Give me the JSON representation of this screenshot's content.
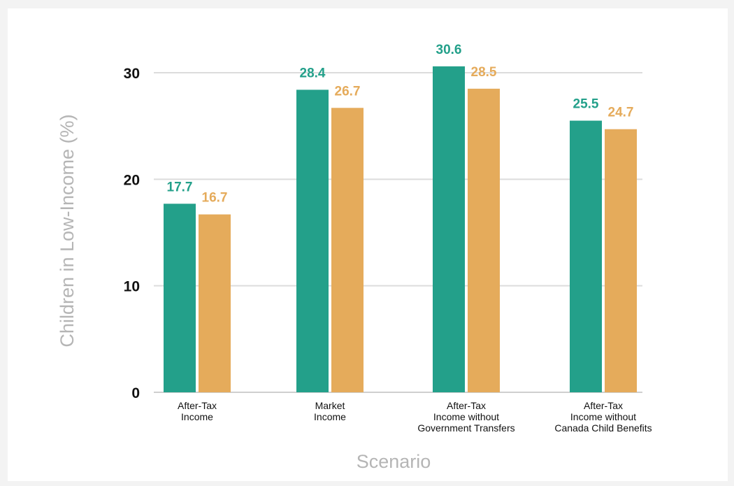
{
  "chart_data": {
    "type": "bar",
    "title": "",
    "xlabel": "Scenario",
    "ylabel": "Children in Low-Income (%)",
    "ylim": [
      0,
      30
    ],
    "yticks": [
      0,
      10,
      20,
      30
    ],
    "grid": true,
    "categories": [
      [
        "After-Tax",
        "Income"
      ],
      [
        "Market",
        "Income"
      ],
      [
        "After-Tax",
        "Income without",
        "Government Transfers"
      ],
      [
        "After-Tax",
        "Income without",
        "Canada Child Benefits"
      ]
    ],
    "series": [
      {
        "color": "#23a08a",
        "values": [
          17.7,
          28.4,
          30.6,
          25.5
        ],
        "labels": [
          "17.7",
          "28.4",
          "30.6",
          "25.5"
        ]
      },
      {
        "color": "#e5ab5b",
        "values": [
          16.7,
          26.7,
          28.5,
          24.7
        ],
        "labels": [
          "16.7",
          "26.7",
          "28.5",
          "24.7"
        ]
      }
    ]
  }
}
